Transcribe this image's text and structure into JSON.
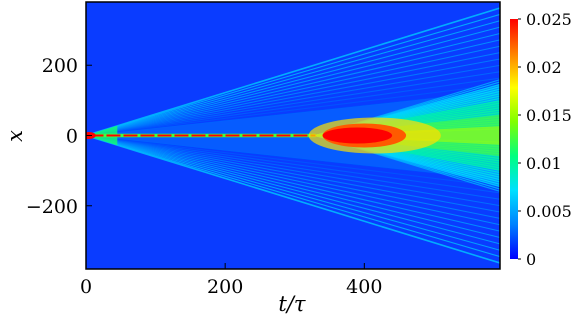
{
  "chart_data": {
    "type": "heatmap",
    "xlabel": "t/τ",
    "ylabel": "x",
    "xlim": [
      0,
      595
    ],
    "ylim": [
      -380,
      380
    ],
    "xticks": [
      {
        "value": 0,
        "label": "0"
      },
      {
        "value": 200,
        "label": "200"
      },
      {
        "value": 400,
        "label": "400"
      }
    ],
    "yticks": [
      {
        "value": 200,
        "label": "200"
      },
      {
        "value": 0,
        "label": "0"
      },
      {
        "value": -200,
        "label": "−200"
      }
    ],
    "colorbar": {
      "range": [
        0,
        0.025
      ],
      "ticks": [
        {
          "value": 0.025,
          "label": "0.025"
        },
        {
          "value": 0.02,
          "label": "0.02"
        },
        {
          "value": 0.015,
          "label": "0.015"
        },
        {
          "value": 0.01,
          "label": "0.01"
        },
        {
          "value": 0.005,
          "label": "0.005"
        },
        {
          "value": 0,
          "label": "0"
        }
      ],
      "colormap": [
        "#0000ff",
        "#0080ff",
        "#00e0ff",
        "#00ff80",
        "#80ff00",
        "#ffff00",
        "#ff8000",
        "#ff0000"
      ]
    },
    "background_color": "#0a3cff",
    "features": {
      "outer_cone_edge_speed": 0.61,
      "central_filament_end_t": 330,
      "inner_cone_start_t": 330,
      "inner_cone_edge_speed": 0.6,
      "hot_spot_t_range": [
        340,
        460
      ],
      "peak_value": 0.025
    }
  }
}
